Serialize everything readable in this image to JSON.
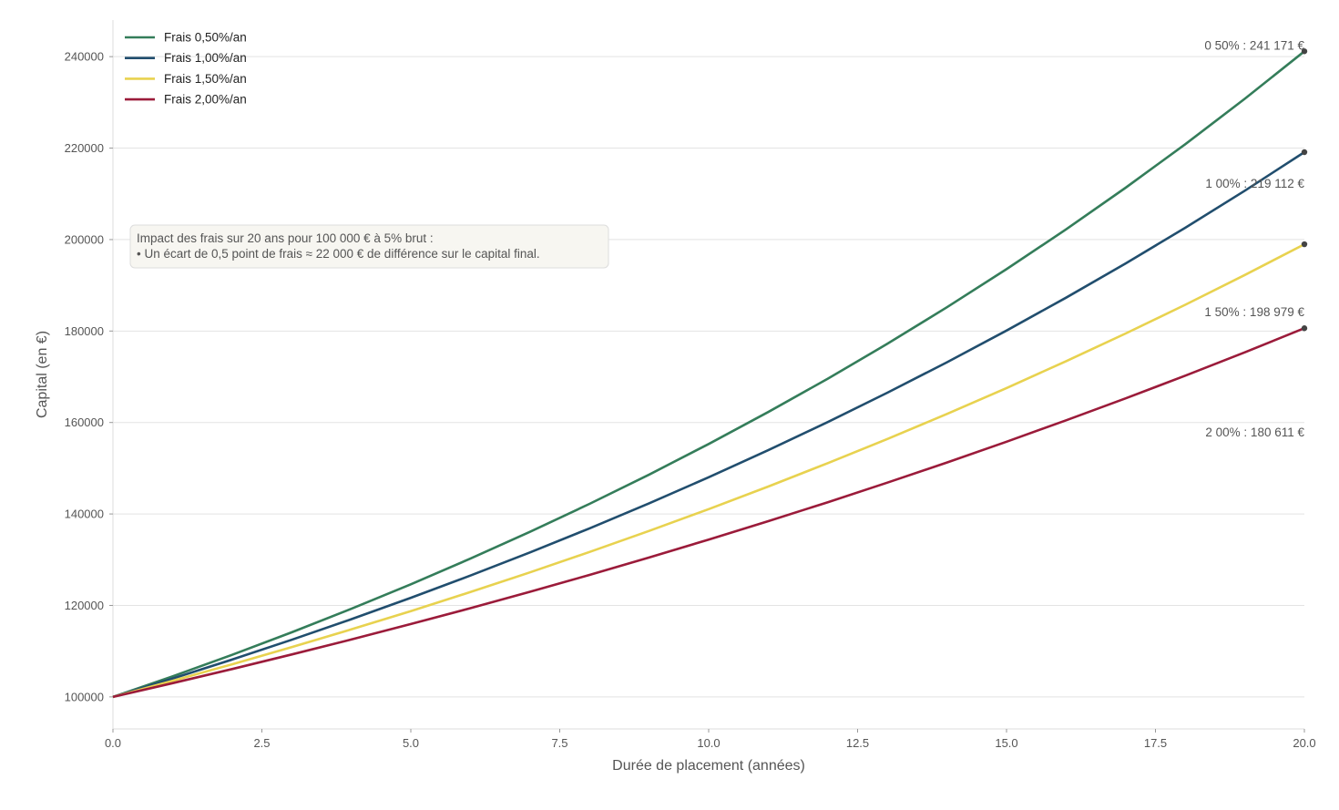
{
  "chart_data": {
    "type": "line",
    "xlabel": "Durée de placement (années)",
    "ylabel": "Capital (en €)",
    "xlim": [
      0,
      20
    ],
    "ylim": [
      93000,
      248000
    ],
    "xticks": [
      "0.0",
      "2.5",
      "5.0",
      "7.5",
      "10.0",
      "12.5",
      "15.0",
      "17.5",
      "20.0"
    ],
    "yticks": [
      "100000",
      "120000",
      "140000",
      "160000",
      "180000",
      "200000",
      "220000",
      "240000"
    ],
    "grid": "horizontal",
    "legend_position": "top-left",
    "x": [
      0,
      1,
      2,
      3,
      4,
      5,
      6,
      7,
      8,
      9,
      10,
      11,
      12,
      13,
      14,
      15,
      16,
      17,
      18,
      19,
      20
    ],
    "series": [
      {
        "name": "Frais 0,50%/an",
        "color": "#347d5a",
        "values": [
          100000,
          104500,
          109203,
          114117,
          119252,
          124618,
          130226,
          136086,
          142210,
          148610,
          155297,
          162285,
          169588,
          177220,
          185194,
          193528,
          202237,
          211338,
          220848,
          230786,
          241171
        ],
        "end_label": "0 50% : 241 171 €"
      },
      {
        "name": "Frais 1,00%/an",
        "color": "#214e6e",
        "values": [
          100000,
          104000,
          108160,
          112486,
          116986,
          121665,
          126532,
          131593,
          136857,
          142331,
          148024,
          153945,
          160103,
          166507,
          173168,
          180094,
          187298,
          194790,
          202582,
          210685,
          219112
        ],
        "end_label": "1 00% : 219 112 €"
      },
      {
        "name": "Frais 1,50%/an",
        "color": "#e8d24f",
        "values": [
          100000,
          103500,
          107123,
          110872,
          114752,
          118769,
          122926,
          127228,
          131681,
          136290,
          141060,
          145997,
          151107,
          156396,
          161870,
          167535,
          173399,
          179468,
          185749,
          192250,
          198979
        ],
        "end_label": "1 50% : 198 979 €"
      },
      {
        "name": "Frais 2,00%/an",
        "color": "#9b1b3a",
        "values": [
          100000,
          103000,
          106090,
          109273,
          112551,
          115927,
          119405,
          122987,
          126677,
          130477,
          134392,
          138423,
          142576,
          146853,
          151259,
          155797,
          160471,
          165285,
          170243,
          175351,
          180611
        ],
        "end_label": "2 00% : 180 611 €"
      }
    ],
    "annotation": {
      "line1": "Impact des frais sur 20 ans pour 100 000 € à 5% brut :",
      "line2": "• Un écart de 0,5 point de frais ≈ 22 000 € de différence sur le capital final."
    }
  }
}
